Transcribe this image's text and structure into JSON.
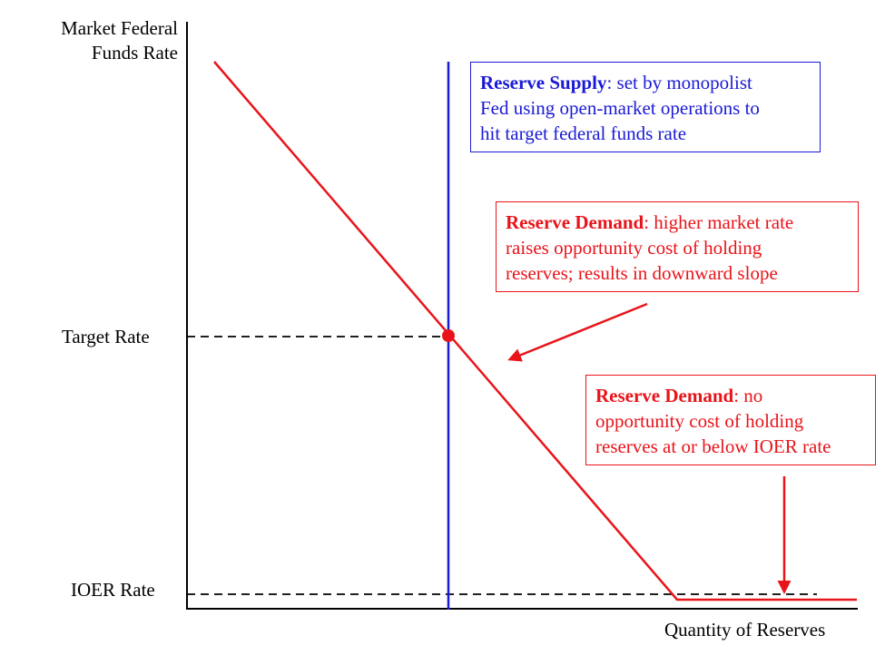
{
  "axes": {
    "y_label_line1": "Market Federal",
    "y_label_line2": "Funds Rate",
    "x_label": "Quantity of Reserves",
    "target_rate_label": "Target Rate",
    "ioer_rate_label": "IOER Rate"
  },
  "boxes": {
    "supply": {
      "title": "Reserve Supply",
      "text_line1": ": set by monopolist",
      "text_line2": "Fed using open-market operations to",
      "text_line3": "hit target federal funds rate"
    },
    "demand_slope": {
      "title": "Reserve Demand",
      "text_line1": ": higher market rate",
      "text_line2": "raises opportunity cost of holding",
      "text_line3": "reserves; results in downward slope"
    },
    "demand_flat": {
      "title": "Reserve Demand",
      "text_line1": ": no",
      "text_line2": "opportunity cost of holding",
      "text_line3": "reserves at or below IOER rate"
    }
  },
  "colors": {
    "supply": "#1a1ad6",
    "demand": "#e8141a",
    "axis": "#000000"
  }
}
